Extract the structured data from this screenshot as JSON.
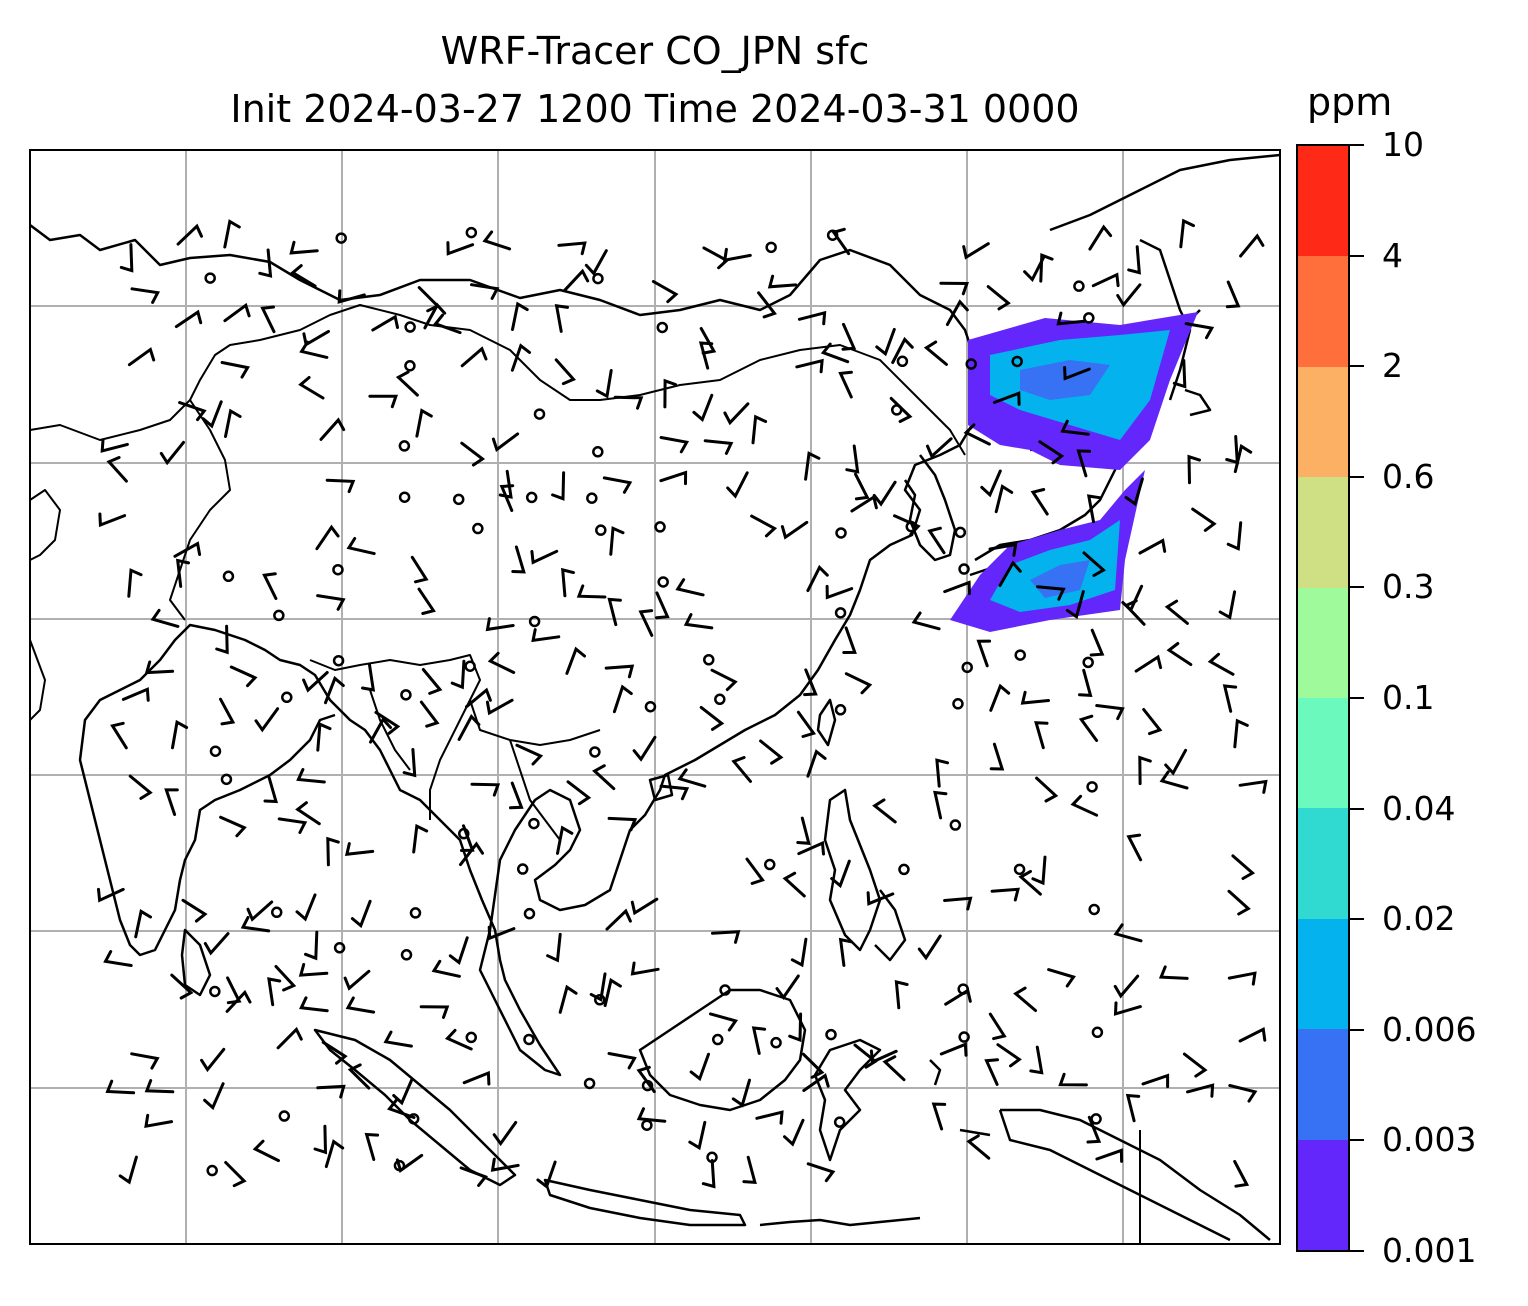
{
  "title": {
    "line1": "WRF-Tracer CO_JPN sfc",
    "line2": "Init 2024-03-27 1200 Time 2024-03-31 0000"
  },
  "colorbar": {
    "unit": "ppm",
    "ticks": [
      "0.001",
      "0.003",
      "0.006",
      "0.02",
      "0.04",
      "0.1",
      "0.3",
      "0.6",
      "2",
      "4",
      "10"
    ],
    "colors": [
      "#6427fb",
      "#3672f3",
      "#04b3ee",
      "#31dad1",
      "#6cf9be",
      "#9ffa9b",
      "#cfdf84",
      "#fcb064",
      "#fe6f3c",
      "#fe2a17"
    ]
  },
  "map": {
    "region": "East and Southeast Asia",
    "grid": true,
    "overlays": [
      "coastlines",
      "country-borders",
      "wind-barbs",
      "co-tracer-shading"
    ],
    "plume_location": "Japan"
  }
}
